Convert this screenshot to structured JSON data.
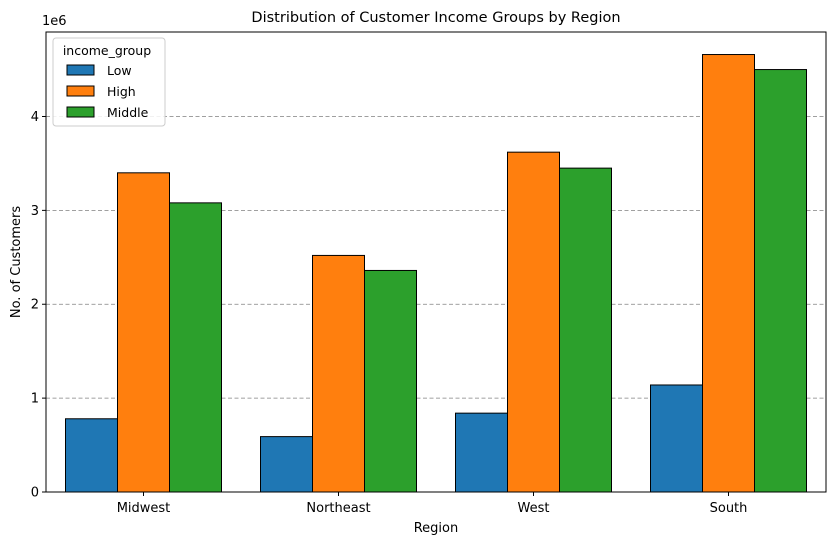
{
  "chart_data": {
    "type": "bar",
    "title": "Distribution of Customer Income Groups by Region",
    "xlabel": "Region",
    "ylabel": "No. of Customers",
    "y_offset_label": "1e6",
    "categories": [
      "Midwest",
      "Northeast",
      "West",
      "South"
    ],
    "ylim": [
      0,
      4.9
    ],
    "yticks": [
      0,
      1,
      2,
      3,
      4
    ],
    "grid": "y-dashed",
    "legend": {
      "title": "income_group",
      "placement": "top-left"
    },
    "series": [
      {
        "name": "Low",
        "color": "#1f77b4",
        "values": [
          0.78,
          0.59,
          0.84,
          1.14
        ]
      },
      {
        "name": "High",
        "color": "#ff7f0e",
        "values": [
          3.4,
          2.52,
          3.62,
          4.66
        ]
      },
      {
        "name": "Middle",
        "color": "#2ca02c",
        "values": [
          3.08,
          2.36,
          3.45,
          4.5
        ]
      }
    ]
  }
}
